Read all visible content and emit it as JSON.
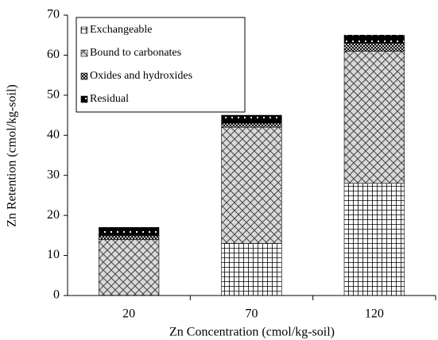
{
  "chart_data": {
    "type": "stacked_bar",
    "xlabel": "Zn Concentration (cmol/kg-soil)",
    "ylabel": "Zn Retention (cmol/kg-soil)",
    "categories": [
      "20",
      "70",
      "120"
    ],
    "series": [
      {
        "name": "Exchangeable",
        "pattern": "grid",
        "color": "#000000",
        "values": [
          0,
          13,
          28
        ]
      },
      {
        "name": "Bound to carbonates",
        "pattern": "diamond",
        "color": "#000000",
        "values": [
          14,
          29,
          33
        ]
      },
      {
        "name": "Oxides and hydroxides",
        "pattern": "crosshatch",
        "color": "#000000",
        "values": [
          1,
          1,
          2
        ]
      },
      {
        "name": "Residual",
        "pattern": "dotted-black",
        "color": "#000000",
        "values": [
          2,
          2,
          2
        ]
      }
    ],
    "ylim": [
      0,
      70
    ],
    "yticks": [
      0,
      10,
      20,
      30,
      40,
      50,
      60,
      70
    ],
    "legend": "upper left"
  }
}
